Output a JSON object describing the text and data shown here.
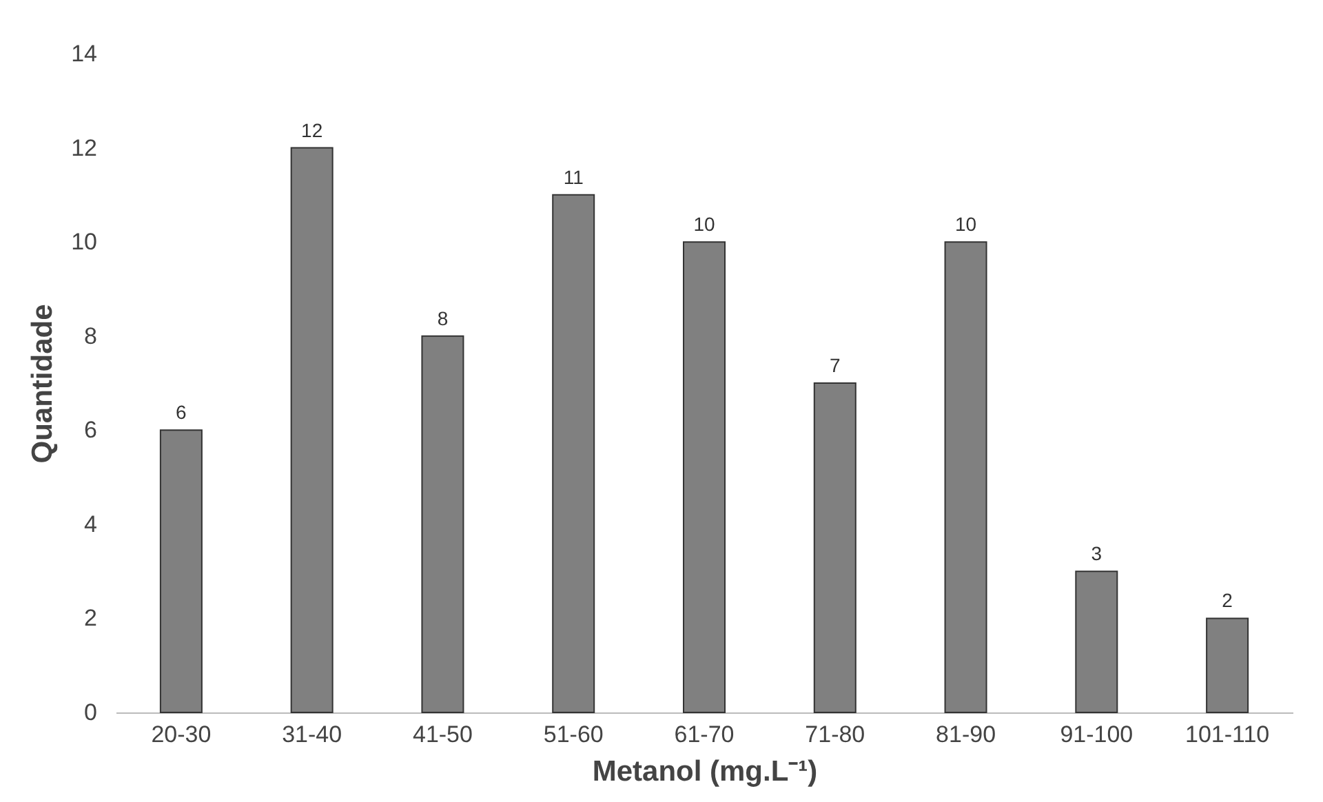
{
  "chart_data": {
    "type": "bar",
    "xlabel": "Metanol (mg.L⁻¹)",
    "ylabel": "Quantidade",
    "categories": [
      "20-30",
      "31-40",
      "41-50",
      "51-60",
      "61-70",
      "71-80",
      "81-90",
      "91-100",
      "101-110"
    ],
    "values": [
      6,
      12,
      8,
      11,
      10,
      7,
      10,
      3,
      2
    ],
    "color": "#808080",
    "ylim": [
      0,
      14
    ],
    "yticks": [
      0,
      2,
      4,
      6,
      8,
      10,
      12,
      14
    ],
    "data_labels": true
  }
}
